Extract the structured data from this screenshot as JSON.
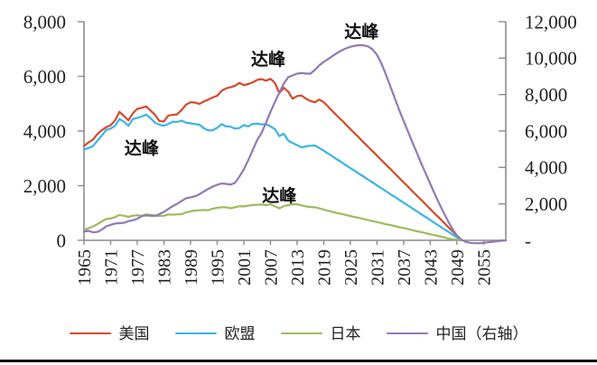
{
  "figure": {
    "background": "#ffffff",
    "axis_line_color": "#8c8c8c",
    "text_color": "#1f1f1f"
  },
  "chart_data": {
    "type": "line",
    "title": "",
    "xlabel": "",
    "ylabel_left": "",
    "ylabel_right": "",
    "grid": false,
    "legend_position": "bottom",
    "x_axis": {
      "range_years": [
        1965,
        2060
      ],
      "tick_labels": [
        "1965",
        "1971",
        "1977",
        "1983",
        "1989",
        "1995",
        "2001",
        "2007",
        "2013",
        "2019",
        "2025",
        "2031",
        "2037",
        "2043",
        "2049",
        "2055"
      ]
    },
    "left_axis": {
      "min": 0,
      "max": 8000,
      "tick_step": 2000,
      "tick_labels": [
        "8,000",
        "6,000",
        "4,000",
        "2,000",
        "0"
      ]
    },
    "right_axis": {
      "min": 0,
      "max": 12000,
      "tick_step": 2000,
      "tick_labels": [
        "12,000",
        "10,000",
        "8,000",
        "6,000",
        "4,000",
        "2,000",
        "-"
      ]
    },
    "series": [
      {
        "key": "usa",
        "name": "美国",
        "color": "#d5492c",
        "axis": "left",
        "start_year": 1965,
        "values": [
          3450,
          3580,
          3680,
          3880,
          4030,
          4140,
          4210,
          4390,
          4700,
          4550,
          4390,
          4650,
          4810,
          4850,
          4900,
          4750,
          4590,
          4360,
          4350,
          4570,
          4590,
          4610,
          4770,
          4970,
          5050,
          5040,
          4990,
          5080,
          5150,
          5230,
          5290,
          5470,
          5560,
          5600,
          5650,
          5760,
          5680,
          5720,
          5780,
          5870,
          5900,
          5840,
          5910,
          5760,
          5390,
          5580,
          5440,
          5180,
          5280,
          5300,
          5180,
          5100,
          5050,
          5150,
          5050,
          4890,
          4720,
          4560,
          4400,
          4240,
          4070,
          3910,
          3750,
          3580,
          3420,
          3260,
          3100,
          2930,
          2770,
          2610,
          2450,
          2280,
          2120,
          1960,
          1790,
          1630,
          1470,
          1310,
          1140,
          980,
          820,
          660,
          490,
          330,
          170,
          0
        ]
      },
      {
        "key": "eu",
        "name": "欧盟",
        "color": "#3ab4e7",
        "axis": "left",
        "start_year": 1965,
        "values": [
          3320,
          3380,
          3440,
          3640,
          3830,
          4040,
          4090,
          4190,
          4440,
          4340,
          4190,
          4440,
          4480,
          4530,
          4600,
          4470,
          4300,
          4230,
          4190,
          4260,
          4340,
          4330,
          4380,
          4300,
          4280,
          4250,
          4230,
          4100,
          4020,
          4030,
          4120,
          4250,
          4170,
          4160,
          4090,
          4110,
          4210,
          4170,
          4260,
          4270,
          4240,
          4250,
          4170,
          4070,
          3810,
          3900,
          3650,
          3560,
          3480,
          3400,
          3440,
          3460,
          3470,
          3380,
          3280,
          3170,
          3070,
          2960,
          2860,
          2750,
          2640,
          2540,
          2430,
          2330,
          2220,
          2120,
          2010,
          1900,
          1800,
          1690,
          1590,
          1480,
          1380,
          1270,
          1160,
          1060,
          950,
          850,
          740,
          630,
          530,
          420,
          320,
          210,
          110,
          0
        ]
      },
      {
        "key": "japan",
        "name": "日本",
        "color": "#9cbb5f",
        "axis": "left",
        "start_year": 1965,
        "values": [
          380,
          440,
          510,
          590,
          690,
          780,
          800,
          850,
          930,
          900,
          860,
          900,
          920,
          900,
          950,
          930,
          910,
          890,
          900,
          950,
          940,
          950,
          960,
          1020,
          1060,
          1090,
          1100,
          1110,
          1100,
          1160,
          1190,
          1210,
          1210,
          1170,
          1210,
          1250,
          1240,
          1270,
          1290,
          1300,
          1310,
          1290,
          1320,
          1240,
          1170,
          1250,
          1290,
          1320,
          1320,
          1280,
          1240,
          1220,
          1210,
          1170,
          1120,
          1080,
          1040,
          1000,
          970,
          930,
          890,
          850,
          820,
          780,
          740,
          700,
          670,
          630,
          590,
          560,
          520,
          480,
          450,
          410,
          370,
          330,
          300,
          260,
          220,
          190,
          150,
          110,
          70,
          40,
          20,
          0
        ]
      },
      {
        "key": "china",
        "name": "中国（右轴）",
        "color": "#9179b5",
        "axis": "right",
        "start_year": 1965,
        "values": [
          480,
          520,
          440,
          460,
          580,
          770,
          850,
          920,
          940,
          960,
          1050,
          1100,
          1180,
          1330,
          1370,
          1350,
          1340,
          1440,
          1560,
          1720,
          1880,
          2010,
          2160,
          2310,
          2360,
          2420,
          2530,
          2680,
          2820,
          2950,
          3050,
          3120,
          3100,
          3060,
          3150,
          3500,
          3900,
          4400,
          4950,
          5500,
          5900,
          6450,
          7050,
          7600,
          8100,
          8600,
          8950,
          9050,
          9150,
          9180,
          9150,
          9150,
          9350,
          9600,
          9800,
          9950,
          10120,
          10280,
          10420,
          10530,
          10620,
          10680,
          10710,
          10700,
          10640,
          10480,
          10180,
          9700,
          9100,
          8450,
          7800,
          7150,
          6550,
          5950,
          5350,
          4780,
          4200,
          3650,
          3100,
          2550,
          2020,
          1520,
          1050,
          620,
          270,
          40,
          -90,
          -140,
          -160,
          -160,
          -140,
          -110,
          -80,
          -50,
          -20,
          -10
        ]
      }
    ],
    "annotations": [
      {
        "text": "达峰",
        "series": "eu",
        "year": 1978,
        "value": 3370,
        "axis": "left"
      },
      {
        "text": "达峰",
        "series": "usa",
        "year": 2006.5,
        "value": 6630,
        "axis": "left"
      },
      {
        "text": "达峰",
        "series": "japan",
        "year": 2009,
        "value": 1640,
        "axis": "left"
      },
      {
        "text": "达峰",
        "series": "china",
        "year": 2027.5,
        "value": 11450,
        "axis": "right"
      }
    ]
  },
  "legend": {
    "items": [
      {
        "key": "usa",
        "label": "美国"
      },
      {
        "key": "eu",
        "label": "欧盟"
      },
      {
        "key": "japan",
        "label": "日本"
      },
      {
        "key": "china",
        "label": "中国（右轴）"
      }
    ]
  }
}
